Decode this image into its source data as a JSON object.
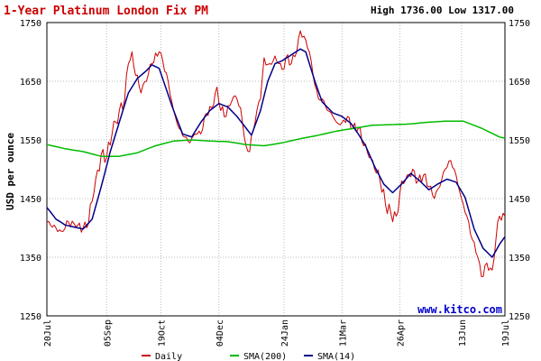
{
  "chart_data": {
    "type": "line",
    "title": "1-Year Platinum London Fix PM",
    "high_low_text": "High 1736.00 Low 1317.00",
    "ylabel": "USD per ounce",
    "watermark": "www.kitco.com",
    "ylim": [
      1250,
      1750
    ],
    "yticks": [
      "1250",
      "1350",
      "1450",
      "1550",
      "1650",
      "1750"
    ],
    "ytick_values": [
      1250,
      1350,
      1450,
      1550,
      1650,
      1750
    ],
    "grid": true,
    "legend_position": "bottom",
    "xticks": [
      {
        "label": "20Jul",
        "i": 0
      },
      {
        "label": "05Sep",
        "i": 33
      },
      {
        "label": "19Oct",
        "i": 63
      },
      {
        "label": "04Dec",
        "i": 95
      },
      {
        "label": "24Jan",
        "i": 131
      },
      {
        "label": "11Mar",
        "i": 163
      },
      {
        "label": "26Apr",
        "i": 195
      },
      {
        "label": "13Jun",
        "i": 229
      },
      {
        "label": "19Jul",
        "i": 253
      }
    ],
    "n_points": 253,
    "series": [
      {
        "name": "Daily",
        "color": "#cc0000",
        "points": [
          [
            0,
            1410
          ],
          [
            5,
            1400
          ],
          [
            8,
            1394
          ],
          [
            12,
            1410
          ],
          [
            16,
            1402
          ],
          [
            20,
            1400
          ],
          [
            22,
            1400
          ],
          [
            26,
            1460
          ],
          [
            30,
            1525
          ],
          [
            33,
            1520
          ],
          [
            36,
            1560
          ],
          [
            40,
            1600
          ],
          [
            43,
            1620
          ],
          [
            45,
            1680
          ],
          [
            47,
            1700
          ],
          [
            49,
            1660
          ],
          [
            52,
            1630
          ],
          [
            55,
            1650
          ],
          [
            58,
            1680
          ],
          [
            62,
            1700
          ],
          [
            64,
            1685
          ],
          [
            67,
            1650
          ],
          [
            70,
            1600
          ],
          [
            73,
            1570
          ],
          [
            76,
            1555
          ],
          [
            79,
            1545
          ],
          [
            82,
            1560
          ],
          [
            85,
            1560
          ],
          [
            88,
            1595
          ],
          [
            91,
            1605
          ],
          [
            94,
            1640
          ],
          [
            96,
            1600
          ],
          [
            99,
            1590
          ],
          [
            102,
            1615
          ],
          [
            105,
            1620
          ],
          [
            108,
            1580
          ],
          [
            110,
            1540
          ],
          [
            112,
            1530
          ],
          [
            115,
            1580
          ],
          [
            118,
            1620
          ],
          [
            120,
            1690
          ],
          [
            123,
            1680
          ],
          [
            125,
            1685
          ],
          [
            128,
            1680
          ],
          [
            130,
            1670
          ],
          [
            132,
            1690
          ],
          [
            135,
            1680
          ],
          [
            138,
            1700
          ],
          [
            140,
            1736
          ],
          [
            143,
            1720
          ],
          [
            145,
            1700
          ],
          [
            147,
            1660
          ],
          [
            150,
            1620
          ],
          [
            152,
            1620
          ],
          [
            155,
            1600
          ],
          [
            158,
            1590
          ],
          [
            160,
            1580
          ],
          [
            163,
            1580
          ],
          [
            166,
            1590
          ],
          [
            169,
            1570
          ],
          [
            172,
            1570
          ],
          [
            175,
            1540
          ],
          [
            178,
            1520
          ],
          [
            181,
            1500
          ],
          [
            184,
            1480
          ],
          [
            187,
            1440
          ],
          [
            190,
            1425
          ],
          [
            193,
            1420
          ],
          [
            196,
            1480
          ],
          [
            199,
            1490
          ],
          [
            202,
            1500
          ],
          [
            205,
            1480
          ],
          [
            208,
            1490
          ],
          [
            211,
            1470
          ],
          [
            214,
            1450
          ],
          [
            217,
            1470
          ],
          [
            220,
            1500
          ],
          [
            223,
            1515
          ],
          [
            226,
            1490
          ],
          [
            229,
            1450
          ],
          [
            232,
            1420
          ],
          [
            235,
            1380
          ],
          [
            238,
            1350
          ],
          [
            240,
            1317
          ],
          [
            243,
            1340
          ],
          [
            246,
            1328
          ],
          [
            248,
            1380
          ],
          [
            250,
            1420
          ],
          [
            252,
            1425
          ],
          [
            253,
            1420
          ]
        ]
      },
      {
        "name": "SMA(200)",
        "color": "#00bb00",
        "points": [
          [
            0,
            1542
          ],
          [
            10,
            1535
          ],
          [
            20,
            1530
          ],
          [
            30,
            1522
          ],
          [
            40,
            1522
          ],
          [
            50,
            1528
          ],
          [
            60,
            1540
          ],
          [
            70,
            1548
          ],
          [
            80,
            1550
          ],
          [
            90,
            1548
          ],
          [
            100,
            1547
          ],
          [
            110,
            1542
          ],
          [
            120,
            1540
          ],
          [
            130,
            1545
          ],
          [
            140,
            1552
          ],
          [
            150,
            1558
          ],
          [
            160,
            1565
          ],
          [
            170,
            1570
          ],
          [
            180,
            1575
          ],
          [
            190,
            1576
          ],
          [
            200,
            1577
          ],
          [
            210,
            1580
          ],
          [
            220,
            1582
          ],
          [
            230,
            1582
          ],
          [
            240,
            1570
          ],
          [
            250,
            1555
          ],
          [
            253,
            1553
          ]
        ]
      },
      {
        "name": "SMA(14)",
        "color": "#000088",
        "points": [
          [
            0,
            1435
          ],
          [
            5,
            1415
          ],
          [
            10,
            1405
          ],
          [
            20,
            1398
          ],
          [
            25,
            1415
          ],
          [
            30,
            1470
          ],
          [
            35,
            1530
          ],
          [
            40,
            1580
          ],
          [
            45,
            1630
          ],
          [
            50,
            1655
          ],
          [
            55,
            1668
          ],
          [
            58,
            1678
          ],
          [
            62,
            1672
          ],
          [
            65,
            1645
          ],
          [
            70,
            1600
          ],
          [
            75,
            1560
          ],
          [
            80,
            1555
          ],
          [
            85,
            1580
          ],
          [
            90,
            1600
          ],
          [
            95,
            1612
          ],
          [
            100,
            1606
          ],
          [
            105,
            1590
          ],
          [
            110,
            1570
          ],
          [
            113,
            1558
          ],
          [
            118,
            1600
          ],
          [
            122,
            1650
          ],
          [
            126,
            1680
          ],
          [
            130,
            1685
          ],
          [
            135,
            1695
          ],
          [
            140,
            1705
          ],
          [
            143,
            1700
          ],
          [
            148,
            1650
          ],
          [
            152,
            1615
          ],
          [
            158,
            1596
          ],
          [
            163,
            1590
          ],
          [
            168,
            1578
          ],
          [
            172,
            1560
          ],
          [
            176,
            1540
          ],
          [
            181,
            1505
          ],
          [
            186,
            1475
          ],
          [
            191,
            1460
          ],
          [
            196,
            1475
          ],
          [
            201,
            1493
          ],
          [
            206,
            1480
          ],
          [
            211,
            1465
          ],
          [
            216,
            1475
          ],
          [
            221,
            1483
          ],
          [
            226,
            1478
          ],
          [
            231,
            1452
          ],
          [
            236,
            1398
          ],
          [
            241,
            1365
          ],
          [
            246,
            1350
          ],
          [
            250,
            1372
          ],
          [
            253,
            1385
          ]
        ]
      }
    ]
  }
}
